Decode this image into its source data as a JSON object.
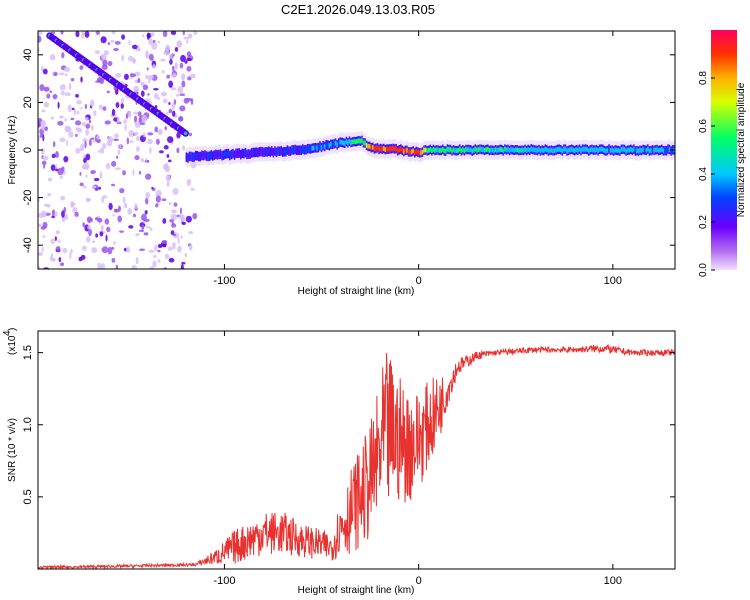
{
  "title": "C2E1.2026.049.13.03.R05",
  "chart_data": [
    {
      "type": "heatmap",
      "title": "C2E1.2026.049.13.03.R05",
      "xlabel": "Height of straight line (km)",
      "ylabel": "Frequency (Hz)",
      "xlim": [
        -196,
        132
      ],
      "ylim": [
        -50,
        50
      ],
      "xticks": [
        -100,
        0,
        100
      ],
      "yticks": [
        -40,
        -20,
        0,
        20,
        40
      ],
      "colorbar": {
        "label": "Normalized spectral amplitude",
        "range": [
          0,
          1
        ],
        "ticks": [
          0.0,
          0.2,
          0.4,
          0.6,
          0.8
        ],
        "colors": [
          "#f0e0ff",
          "#b26cf0",
          "#6a00ff",
          "#0040ff",
          "#00c8ff",
          "#00ff66",
          "#d8ff00",
          "#ffb000",
          "#ff3000",
          "#ff0060"
        ]
      },
      "scatter_band": {
        "x": [
          -196,
          -115
        ],
        "freq": [
          -50,
          50
        ]
      },
      "ridge_diagonal": {
        "x_start": -190,
        "freq_start": 48,
        "x_end": -120,
        "freq_end": 7
      },
      "ridge_main": {
        "x": [
          -120,
          -100,
          -80,
          -60,
          -40,
          -30,
          -25,
          -10,
          0,
          5,
          20,
          60,
          100,
          132
        ],
        "freq": [
          -3,
          -2,
          -1,
          0,
          3,
          4,
          1,
          0,
          -1,
          0,
          0,
          0,
          0,
          0
        ],
        "amplitude": [
          0.3,
          0.3,
          0.3,
          0.35,
          0.45,
          0.6,
          0.9,
          0.95,
          0.9,
          0.6,
          0.6,
          0.5,
          0.45,
          0.4
        ]
      }
    },
    {
      "type": "line",
      "xlabel": "Height of straight line (km)",
      "ylabel": "SNR (10 * v/v)",
      "y_multiplier": "(x10",
      "y_exponent": "4",
      "xlim": [
        -196,
        132
      ],
      "ylim": [
        0,
        1.65
      ],
      "xticks": [
        -100,
        0,
        100
      ],
      "yticks": [
        0.5,
        1.0,
        1.5
      ],
      "series": [
        {
          "name": "SNR",
          "color": "#e8322f",
          "x": [
            -196,
            -150,
            -115,
            -105,
            -95,
            -80,
            -70,
            -60,
            -45,
            -40,
            -35,
            -30,
            -25,
            -20,
            -17,
            -15,
            -10,
            -5,
            0,
            5,
            10,
            15,
            20,
            30,
            40,
            60,
            80,
            95,
            110,
            132
          ],
          "center": [
            0.01,
            0.02,
            0.03,
            0.08,
            0.15,
            0.25,
            0.25,
            0.2,
            0.15,
            0.3,
            0.4,
            0.5,
            0.6,
            0.8,
            0.9,
            0.95,
            0.9,
            0.85,
            0.9,
            1.0,
            1.1,
            1.25,
            1.4,
            1.48,
            1.5,
            1.52,
            1.52,
            1.53,
            1.5,
            1.5
          ],
          "noise": [
            0.01,
            0.01,
            0.01,
            0.05,
            0.12,
            0.15,
            0.15,
            0.12,
            0.1,
            0.2,
            0.3,
            0.35,
            0.4,
            0.5,
            0.6,
            0.55,
            0.45,
            0.4,
            0.35,
            0.3,
            0.25,
            0.12,
            0.06,
            0.03,
            0.02,
            0.02,
            0.02,
            0.03,
            0.02,
            0.02
          ]
        }
      ]
    }
  ]
}
